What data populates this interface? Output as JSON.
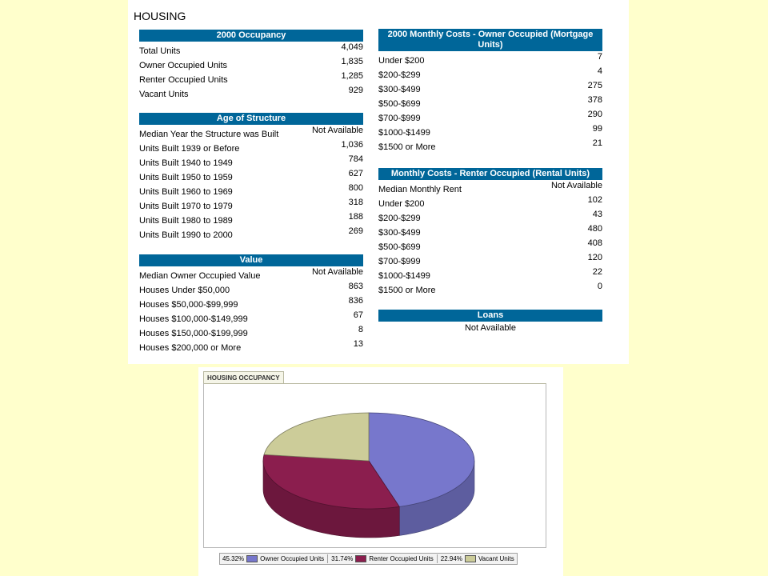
{
  "title": "HOUSING",
  "sections": {
    "occupancy": {
      "header": "2000 Occupancy",
      "rows": [
        {
          "label": "Total Units",
          "value": "4,049"
        },
        {
          "label": "Owner Occupied Units",
          "value": "1,835"
        },
        {
          "label": "Renter Occupied Units",
          "value": "1,285"
        },
        {
          "label": "Vacant Units",
          "value": "929"
        }
      ]
    },
    "age": {
      "header": "Age of Structure",
      "rows": [
        {
          "label": "Median Year the Structure was Built",
          "value": "Not Available"
        },
        {
          "label": "Units Built 1939 or Before",
          "value": "1,036"
        },
        {
          "label": "Units Built 1940 to 1949",
          "value": "784"
        },
        {
          "label": "Units Built 1950 to 1959",
          "value": "627"
        },
        {
          "label": "Units Built 1960 to 1969",
          "value": "800"
        },
        {
          "label": "Units Built 1970 to 1979",
          "value": "318"
        },
        {
          "label": "Units Built 1980 to 1989",
          "value": "188"
        },
        {
          "label": "Units Built 1990 to 2000",
          "value": "269"
        }
      ]
    },
    "value": {
      "header": "Value",
      "rows": [
        {
          "label": "Median Owner Occupied Value",
          "value": "Not Available"
        },
        {
          "label": "Houses Under $50,000",
          "value": "863"
        },
        {
          "label": "Houses $50,000-$99,999",
          "value": "836"
        },
        {
          "label": "Houses $100,000-$149,999",
          "value": "67"
        },
        {
          "label": "Houses $150,000-$199,999",
          "value": "8"
        },
        {
          "label": "Houses $200,000 or More",
          "value": "13"
        }
      ]
    },
    "owner_costs": {
      "header": "2000 Monthly Costs - Owner Occupied (Mortgage Units)",
      "rows": [
        {
          "label": "Under $200",
          "value": "7"
        },
        {
          "label": "$200-$299",
          "value": "4"
        },
        {
          "label": "$300-$499",
          "value": "275"
        },
        {
          "label": "$500-$699",
          "value": "378"
        },
        {
          "label": "$700-$999",
          "value": "290"
        },
        {
          "label": "$1000-$1499",
          "value": "99"
        },
        {
          "label": "$1500 or More",
          "value": "21"
        }
      ]
    },
    "renter_costs": {
      "header": "Monthly Costs - Renter Occupied (Rental Units)",
      "rows": [
        {
          "label": "Median Monthly Rent",
          "value": "Not Available"
        },
        {
          "label": "Under $200",
          "value": "102"
        },
        {
          "label": "$200-$299",
          "value": "43"
        },
        {
          "label": "$300-$499",
          "value": "480"
        },
        {
          "label": "$500-$699",
          "value": "408"
        },
        {
          "label": "$700-$999",
          "value": "120"
        },
        {
          "label": "$1000-$1499",
          "value": "22"
        },
        {
          "label": "$1500 or More",
          "value": "0"
        }
      ]
    },
    "loans": {
      "header": "Loans",
      "text": "Not Available"
    }
  },
  "chart_data": {
    "type": "pie",
    "title": "HOUSING OCCUPANCY",
    "slices": [
      {
        "label": "Owner Occupied Units",
        "percent": 45.32,
        "pct_label": "45.32%",
        "color": "#7777cc"
      },
      {
        "label": "Renter Occupied Units",
        "percent": 31.74,
        "pct_label": "31.74%",
        "color": "#8b1e4e"
      },
      {
        "label": "Vacant Units",
        "percent": 22.94,
        "pct_label": "22.94%",
        "color": "#cccc99"
      }
    ],
    "legend_position": "bottom"
  }
}
